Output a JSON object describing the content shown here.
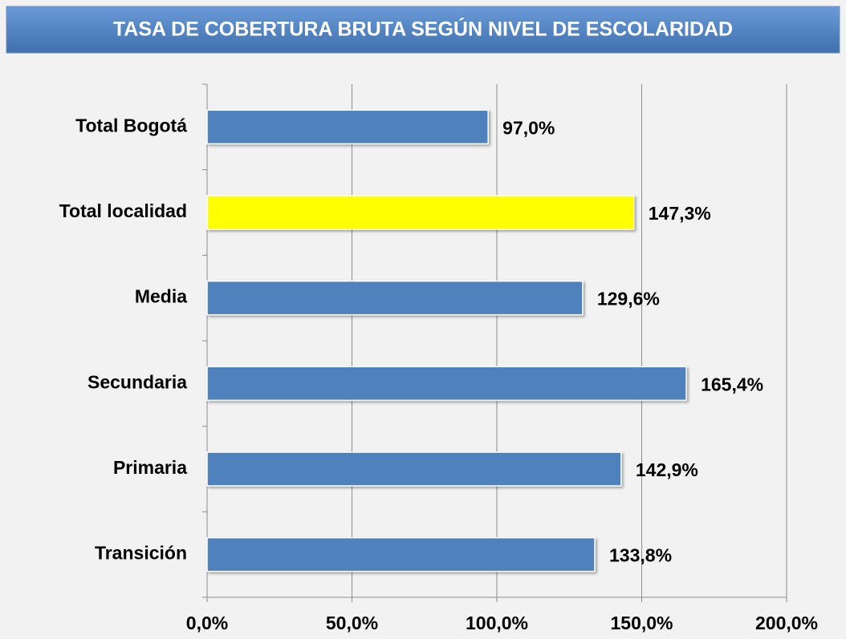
{
  "chart_data": {
    "type": "bar",
    "title": "TASA DE COBERTURA BRUTA SEGÚN NIVEL DE ESCOLARIDAD",
    "categories": [
      "Total Bogotá",
      "Total localidad",
      "Media",
      "Secundaria",
      "Primaria",
      "Transición"
    ],
    "values": [
      97.0,
      147.3,
      129.6,
      165.4,
      142.9,
      133.8
    ],
    "value_labels": [
      "97,0%",
      "147,3%",
      "129,6%",
      "165,4%",
      "142,9%",
      "133,8%"
    ],
    "colors": [
      "#4f81bd",
      "#ffff00",
      "#4f81bd",
      "#4f81bd",
      "#4f81bd",
      "#4f81bd"
    ],
    "xlim": [
      0,
      200
    ],
    "xticks": [
      {
        "value": 0,
        "label": "0,0%"
      },
      {
        "value": 50,
        "label": "50,0%"
      },
      {
        "value": 100,
        "label": "100,0%"
      },
      {
        "value": 150,
        "label": "150,0%"
      },
      {
        "value": 200,
        "label": "200,0%"
      }
    ],
    "grid": true
  }
}
